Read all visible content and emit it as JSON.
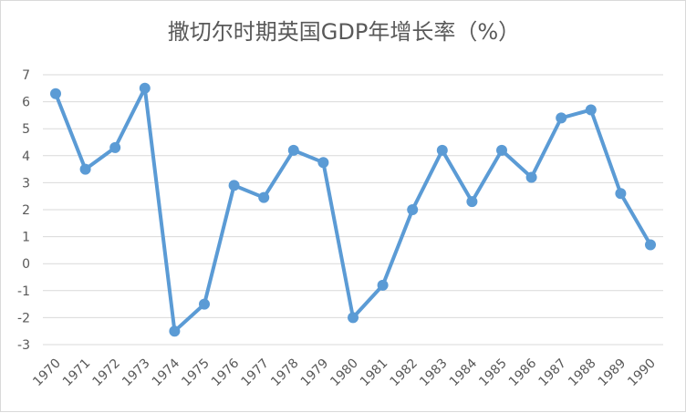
{
  "chart_data": {
    "type": "line",
    "title": "撒切尔时期英国GDP年增长率（%）",
    "xlabel": "",
    "ylabel": "",
    "x": [
      "1970",
      "1971",
      "1972",
      "1973",
      "1974",
      "1975",
      "1976",
      "1977",
      "1978",
      "1979",
      "1980",
      "1981",
      "1982",
      "1983",
      "1984",
      "1985",
      "1986",
      "1987",
      "1988",
      "1989",
      "1990"
    ],
    "series": [
      {
        "values": [
          6.3,
          3.5,
          4.3,
          6.5,
          -2.5,
          -1.5,
          2.9,
          2.45,
          4.2,
          3.75,
          -2.0,
          -0.8,
          2.0,
          4.2,
          2.3,
          4.2,
          3.2,
          5.4,
          5.7,
          2.6,
          0.7
        ]
      }
    ],
    "ylim": [
      -3,
      7
    ],
    "yticks": [
      "7",
      "6",
      "5",
      "4",
      "3",
      "2",
      "1",
      "0",
      "-1",
      "-2",
      "-3"
    ],
    "grid": true,
    "legend": "none",
    "colors": {
      "line": "#5b9bd5",
      "grid": "#d9d9d9",
      "text": "#595959"
    }
  }
}
